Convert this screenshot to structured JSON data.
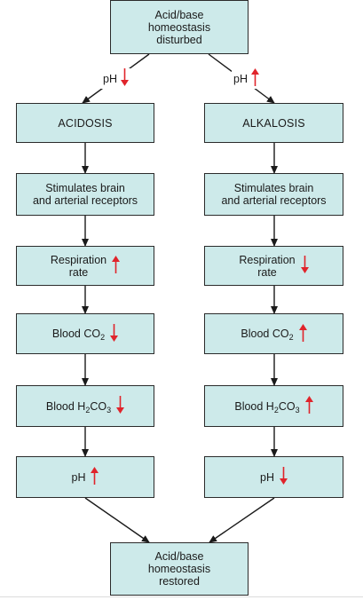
{
  "top_box": {
    "text": "Acid/base\nhomeostasis\ndisturbed"
  },
  "ph_left": {
    "label": "pH",
    "direction": "down"
  },
  "ph_right": {
    "label": "pH",
    "direction": "up"
  },
  "left_column": {
    "condition": "ACIDOSIS",
    "stimulates": "Stimulates brain\nand arterial receptors",
    "respiration": {
      "text": "Respiration\nrate",
      "direction": "up"
    },
    "blood_co2": {
      "prefix": "Blood CO",
      "sub": "2",
      "suffix": "",
      "direction": "down"
    },
    "blood_h2co3": {
      "prefix": "Blood H",
      "sub1": "2",
      "mid": "CO",
      "sub2": "3",
      "direction": "down"
    },
    "ph": {
      "text": "pH",
      "direction": "up"
    }
  },
  "right_column": {
    "condition": "ALKALOSIS",
    "stimulates": "Stimulates brain\nand arterial receptors",
    "respiration": {
      "text": "Respiration\nrate",
      "direction": "down"
    },
    "blood_co2": {
      "prefix": "Blood CO",
      "sub": "2",
      "suffix": "",
      "direction": "up"
    },
    "blood_h2co3": {
      "prefix": "Blood H",
      "sub1": "2",
      "mid": "CO",
      "sub2": "3",
      "direction": "up"
    },
    "ph": {
      "text": "pH",
      "direction": "down"
    }
  },
  "bottom_box": {
    "text": "Acid/base\nhomeostasis\nrestored"
  },
  "colors": {
    "box_fill": "#cdeaea",
    "box_border": "#2b2b2b",
    "arrow_red": "#e0242b",
    "connector": "#1a1a1a"
  }
}
